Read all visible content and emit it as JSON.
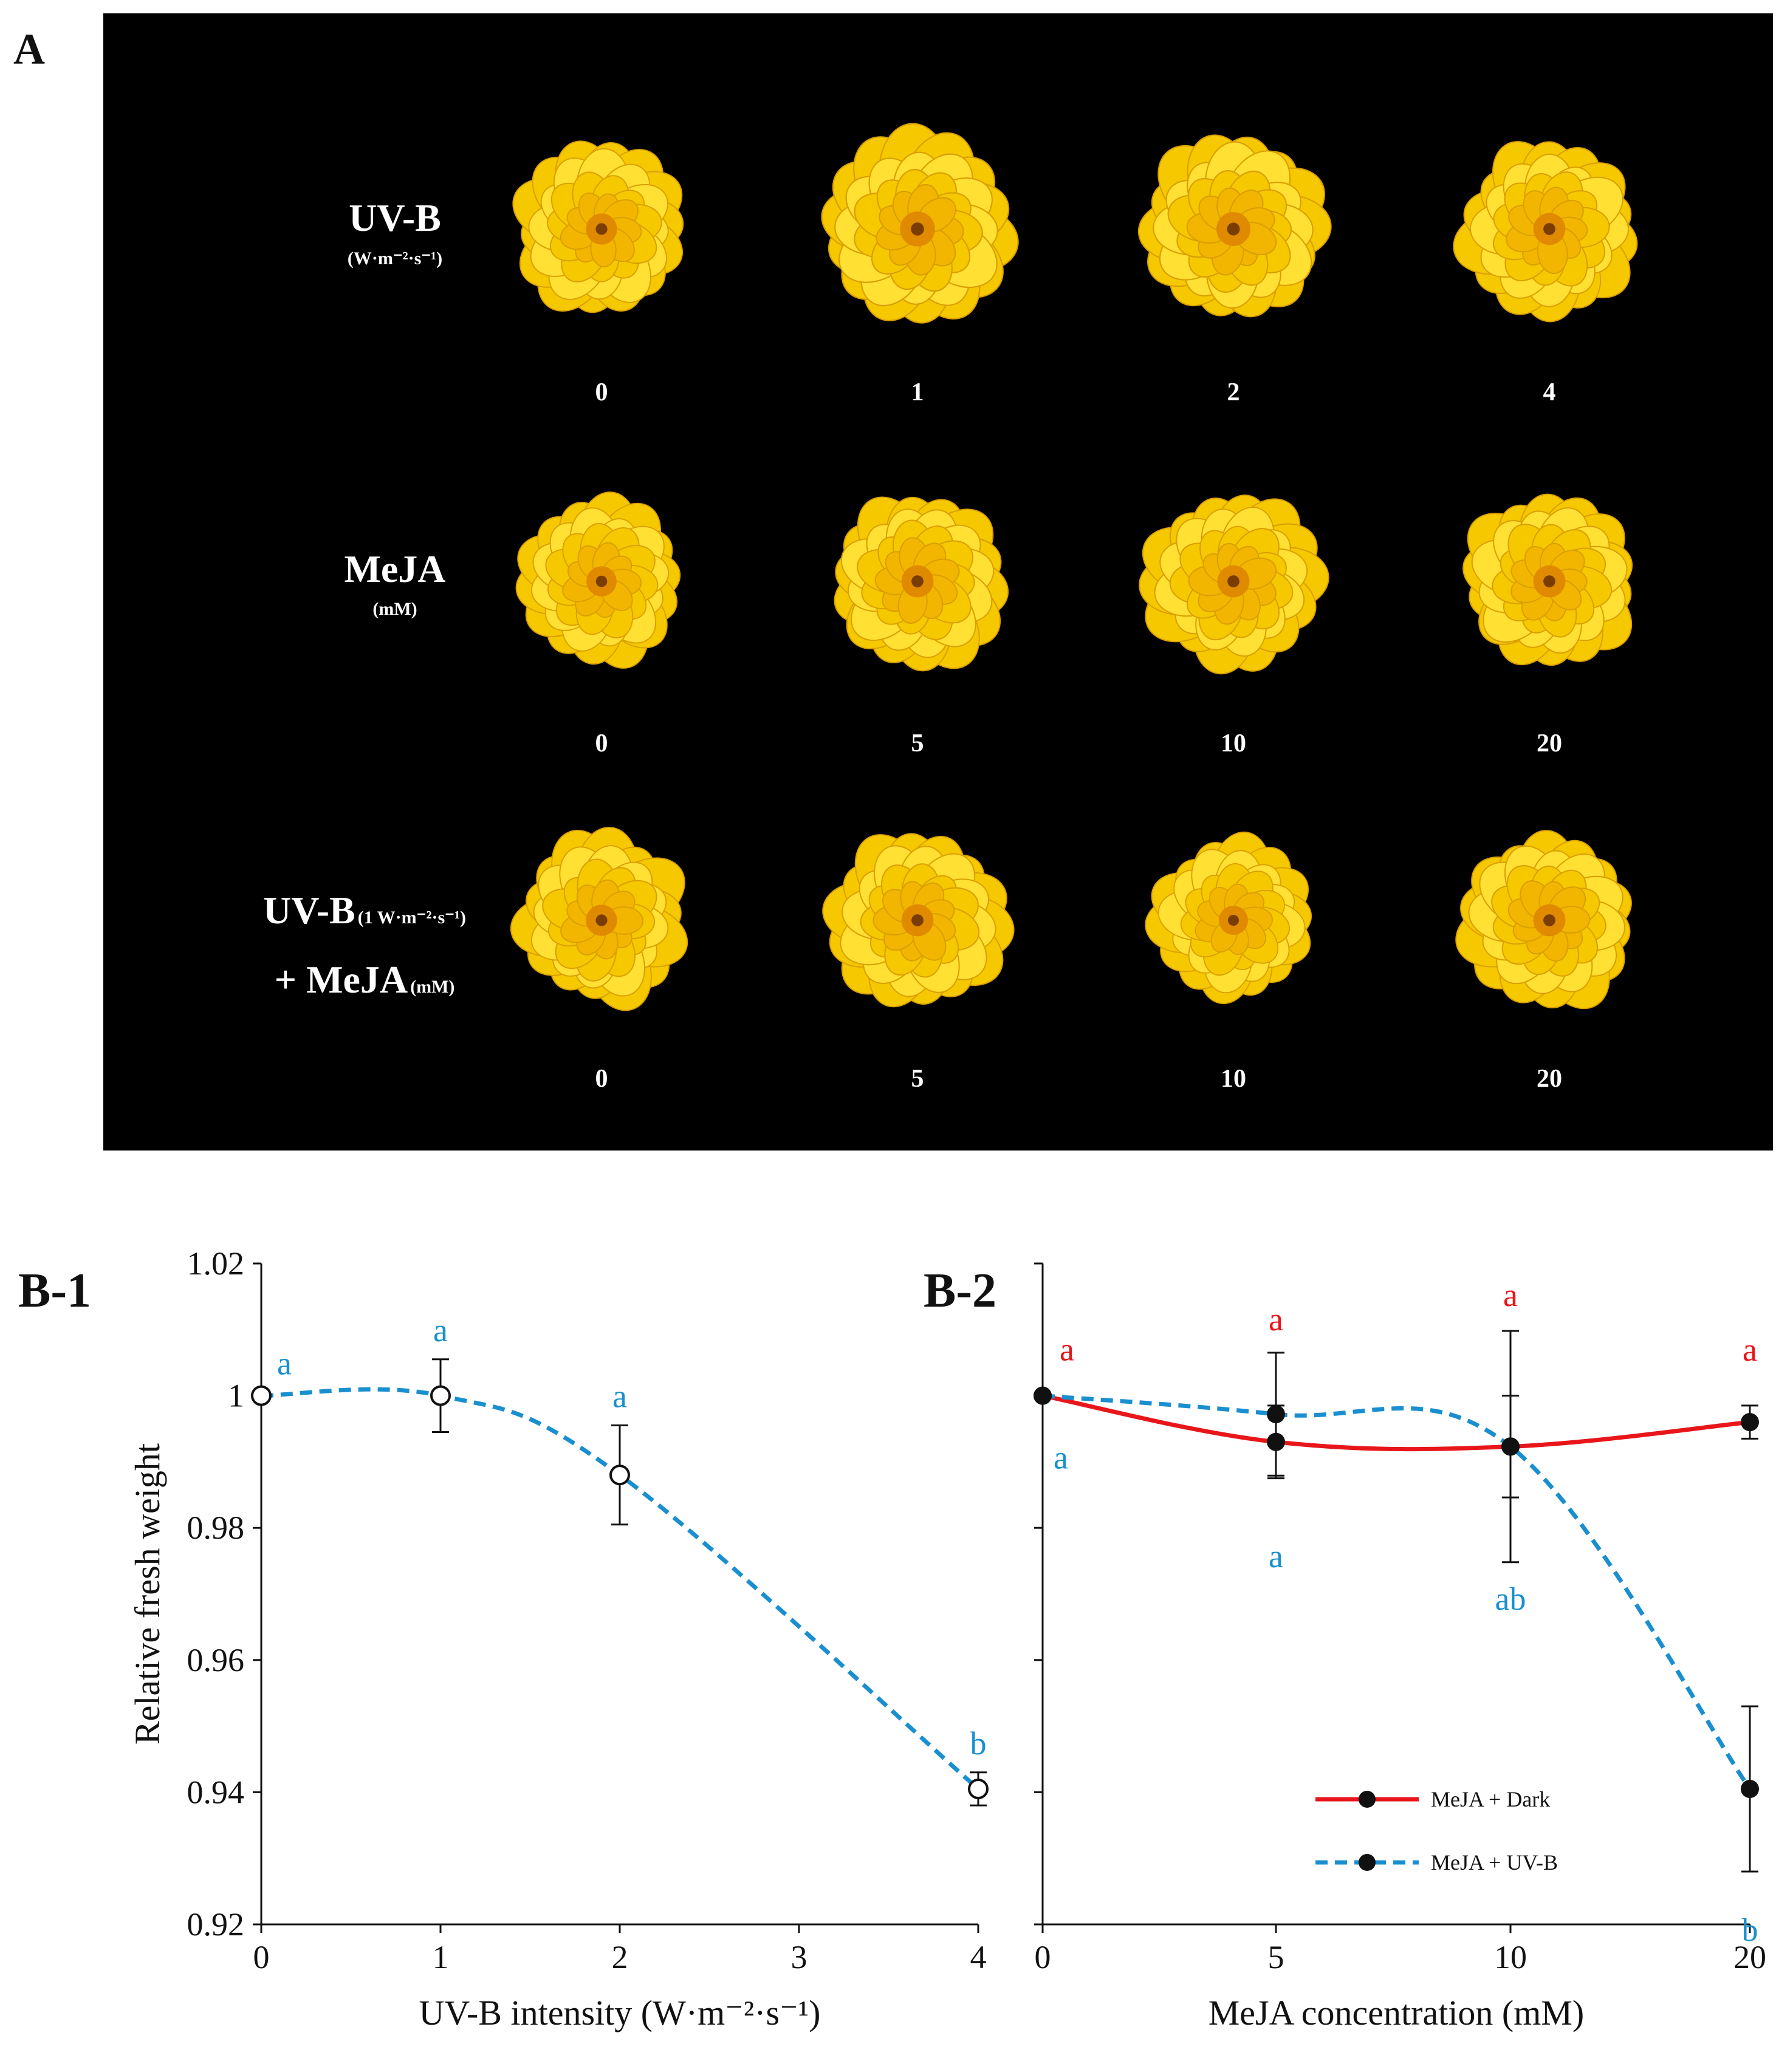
{
  "panel_a": {
    "label": "A",
    "rows": [
      {
        "title": "UV-B",
        "unit": "(W·m⁻²·s⁻¹)",
        "doses": [
          "0",
          "1",
          "2",
          "4"
        ]
      },
      {
        "title": "MeJA",
        "unit": "(mM)",
        "doses": [
          "0",
          "5",
          "10",
          "20"
        ]
      },
      {
        "title_line1": "UV-B",
        "title_line1_unit": "(1 W·m⁻²·s⁻¹)",
        "title_line2": "+ MeJA",
        "title_line2_unit": "(mM)",
        "doses": [
          "0",
          "5",
          "10",
          "20"
        ]
      }
    ],
    "colors": {
      "background": "#000000",
      "petal": "#f5c800",
      "petal_light": "#ffe033",
      "center": "#e08a00",
      "text": "#ffffff"
    }
  },
  "chart_data": [
    {
      "panel": "B-1",
      "type": "line",
      "x": [
        0,
        1,
        2,
        4
      ],
      "series": [
        {
          "name": "UV-B",
          "values": [
            1.0,
            1.0,
            0.988,
            0.9405
          ],
          "errors": [
            0.0,
            0.0055,
            0.0075,
            0.0025
          ],
          "letters": [
            "a",
            "a",
            "a",
            "b"
          ],
          "color": "#1a8fd0",
          "style": "dashed",
          "marker": "open-circle"
        }
      ],
      "xlabel": "UV-B  intensity (W·m⁻²·s⁻¹)",
      "ylabel": "Relative fresh weight",
      "xticks": [
        "0",
        "1",
        "2",
        "3",
        "4"
      ],
      "yticks": [
        "0.92",
        "0.94",
        "0.96",
        "0.98",
        "1",
        "1.02"
      ],
      "xlim": [
        0,
        4
      ],
      "ylim": [
        0.92,
        1.02
      ]
    },
    {
      "panel": "B-2",
      "type": "line",
      "categories": [
        "0",
        "5",
        "10",
        "20"
      ],
      "series": [
        {
          "name": "MeJA + Dark",
          "values": [
            1.0,
            0.993,
            0.9923,
            0.996
          ],
          "errors": [
            0.0,
            0.0055,
            0.0175,
            0.0025
          ],
          "letters": [
            "a",
            "a",
            "a",
            "a"
          ],
          "color": "#e8161a",
          "style": "solid"
        },
        {
          "name": "MeJA + UV-B",
          "values": [
            1.0,
            0.9972,
            0.9923,
            0.9405
          ],
          "errors": [
            0.0,
            0.0093,
            0.0077,
            0.0125
          ],
          "letters": [
            "a",
            "a",
            "ab",
            "b"
          ],
          "color": "#1a8fd0",
          "style": "dashed"
        }
      ],
      "xlabel": "MeJA  concentration (mM)",
      "xticks": [
        "0",
        "5",
        "10",
        "20"
      ],
      "ylim": [
        0.92,
        1.02
      ]
    }
  ]
}
